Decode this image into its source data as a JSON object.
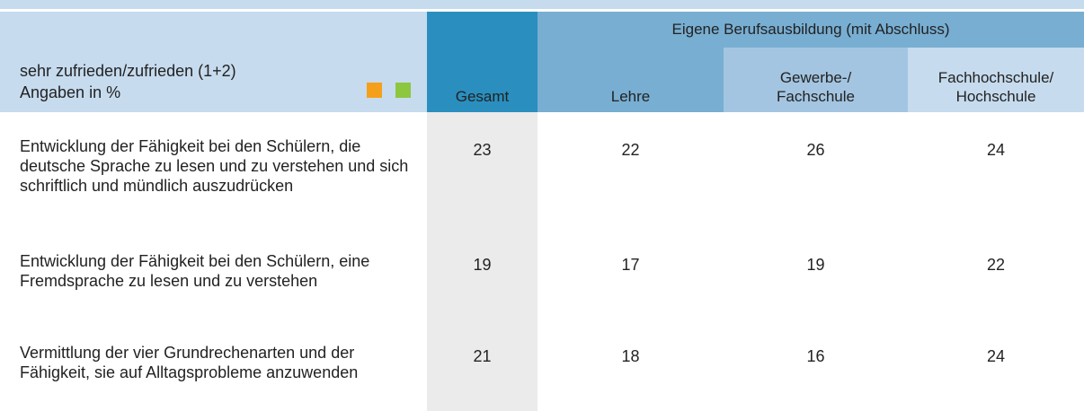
{
  "header": {
    "label_lines": [
      "sehr zufrieden/zufrieden (1+2)",
      "Angaben in %"
    ],
    "group": "Eigene Berufsausbildung (mit Abschluss)",
    "columns": [
      [
        "Gesamt"
      ],
      [
        "Lehre"
      ],
      [
        "Gewerbe-/",
        "Fachschule"
      ],
      [
        "Fachhochschule/",
        "Hochschule"
      ]
    ]
  },
  "table": {
    "rows": [
      {
        "label": "Entwicklung der Fähigkeit bei den Schülern, die deutsche Sprache zu lesen und zu verstehen und sich schriftlich und mündlich auszudrücken",
        "values": [
          "23",
          "22",
          "26",
          "24"
        ]
      },
      {
        "label": "Entwicklung der Fähigkeit bei den Schülern, eine Fremdsprache zu lesen und zu verstehen",
        "values": [
          "19",
          "17",
          "19",
          "22"
        ]
      },
      {
        "label": "Vermittlung der vier Grundrechenarten und der Fähigkeit, sie auf Alltagsprobleme anzuwenden",
        "values": [
          "21",
          "18",
          "16",
          "24"
        ]
      }
    ]
  }
}
